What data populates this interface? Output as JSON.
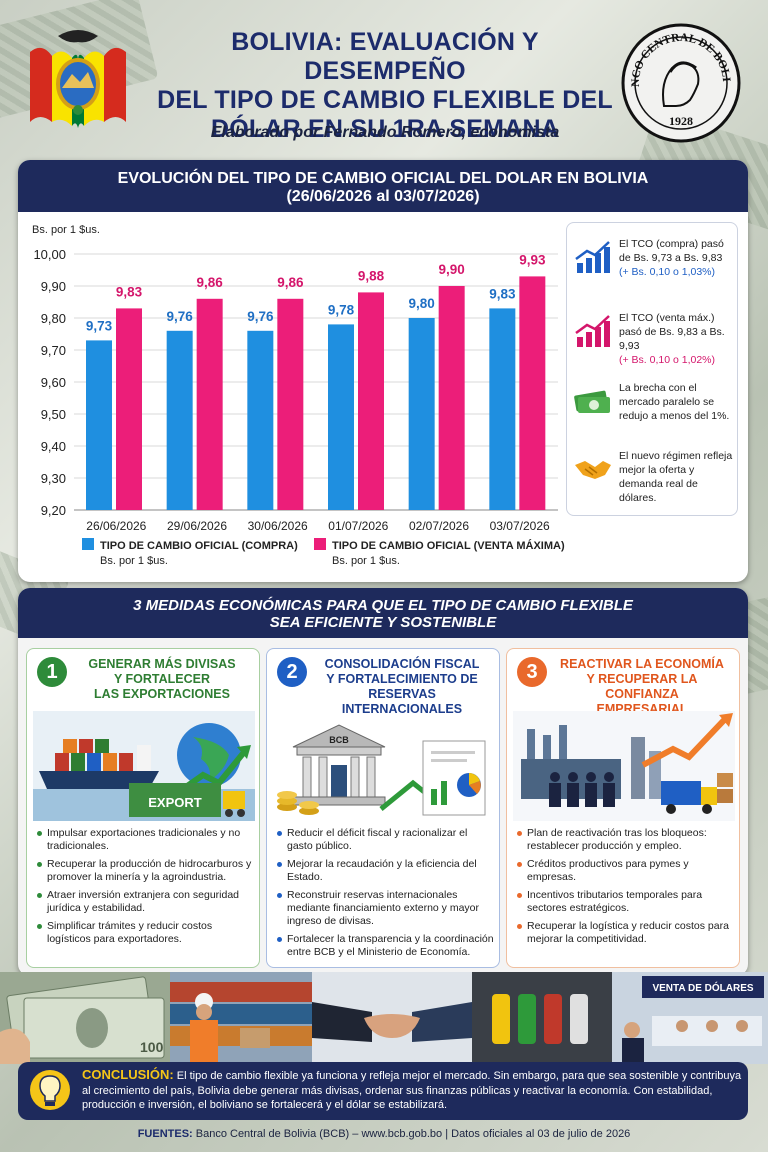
{
  "header": {
    "title_lines": [
      "BOLIVIA: EVALUACIÓN Y DESEMPEÑO",
      "DEL TIPO DE CAMBIO FLEXIBLE DEL",
      "DÓLAR EN SU 1RA SEMANA"
    ],
    "subtitle": "Elaborado por Fernando Romero, economista",
    "seal_text": "BANCO CENTRAL DE BOLIVIA",
    "seal_year": "1928"
  },
  "chart_section": {
    "title": "EVOLUCIÓN DEL TIPO DE CAMBIO OFICIAL DEL DOLAR EN BOLIVIA",
    "subtitle": "(26/06/2026 al 03/07/2026)",
    "unit": "Bs. por 1 $us."
  },
  "chart_data": {
    "type": "bar",
    "categories": [
      "26/06/2026",
      "29/06/2026",
      "30/06/2026",
      "01/07/2026",
      "02/07/2026",
      "03/07/2026"
    ],
    "series": [
      {
        "name": "TIPO DE CAMBIO OFICIAL (COMPRA)",
        "values": [
          9.73,
          9.76,
          9.76,
          9.78,
          9.8,
          9.83
        ],
        "labels": [
          "9,73",
          "9,76",
          "9,76",
          "9,78",
          "9,80",
          "9,83"
        ],
        "color": "#1f8fe0"
      },
      {
        "name": "TIPO DE CAMBIO OFICIAL (VENTA MÁXIMA)",
        "values": [
          9.83,
          9.86,
          9.86,
          9.88,
          9.9,
          9.93
        ],
        "labels": [
          "9,83",
          "9,86",
          "9,86",
          "9,88",
          "9,90",
          "9,93"
        ],
        "color": "#ec1e79"
      }
    ],
    "ylim": [
      9.2,
      10.0
    ],
    "yticks": [
      9.2,
      9.3,
      9.4,
      9.5,
      9.6,
      9.7,
      9.8,
      9.9,
      10.0
    ],
    "ytick_labels": [
      "9,20",
      "9,30",
      "9,40",
      "9,50",
      "9,60",
      "9,70",
      "9,80",
      "9,90",
      "10,00"
    ],
    "ylabel": "Bs. por 1 $us.",
    "grid": true,
    "legend_position": "bottom"
  },
  "legend": {
    "compra": {
      "label": "TIPO DE CAMBIO OFICIAL (COMPRA)",
      "unit": "Bs. por 1 $us."
    },
    "venta": {
      "label": "TIPO DE CAMBIO OFICIAL (VENTA MÁXIMA)",
      "unit": "Bs. por 1 $us."
    }
  },
  "highlights": [
    {
      "text": "El TCO (compra) pasó de Bs. 9,73 a Bs. 9,83",
      "emph": "(+ Bs. 0,10 o 1,03%)",
      "icon": "chart-up-blue-icon"
    },
    {
      "text": "El TCO (venta máx.) pasó de Bs. 9,83 a Bs. 9,93",
      "emph": "(+ Bs. 0,10 o 1,02%)",
      "icon": "chart-up-pink-icon"
    },
    {
      "text": "La brecha con el mercado paralelo se redujo a menos del 1%.",
      "emph": "",
      "icon": "money-icon"
    },
    {
      "text": "El nuevo régimen refleja mejor la oferta y demanda real de dólares.",
      "emph": "",
      "icon": "handshake-icon"
    }
  ],
  "measures": {
    "title_lines": [
      "3 MEDIDAS ECONÓMICAS PARA QUE EL TIPO DE CAMBIO FLEXIBLE",
      "SEA EFICIENTE Y SOSTENIBLE"
    ],
    "items": [
      {
        "num": "1",
        "title_lines": [
          "GENERAR MÁS DIVISAS",
          "Y FORTALECER",
          "LAS EXPORTACIONES"
        ],
        "tag": "EXPORT",
        "bullets": [
          "Impulsar exportaciones tradicionales y no tradicionales.",
          "Recuperar la producción de hidrocarburos y promover la minería y la agroindustria.",
          "Atraer inversión extranjera con seguridad jurídica y estabilidad.",
          "Simplificar trámites y reducir costos logísticos para exportadores."
        ]
      },
      {
        "num": "2",
        "title_lines": [
          "CONSOLIDACIÓN FISCAL",
          "Y FORTALECIMIENTO DE",
          "RESERVAS INTERNACIONALES"
        ],
        "tag": "BCB",
        "bullets": [
          "Reducir el déficit fiscal y racionalizar el gasto público.",
          "Mejorar la recaudación y la eficiencia del Estado.",
          "Reconstruir reservas internacionales mediante financiamiento externo y mayor ingreso de divisas.",
          "Fortalecer la transparencia y la coordinación entre BCB y el Ministerio de Economía."
        ]
      },
      {
        "num": "3",
        "title_lines": [
          "REACTIVAR LA ECONOMÍA",
          "Y RECUPERAR LA CONFIANZA",
          "EMPRESARIAL"
        ],
        "tag": "",
        "bullets": [
          "Plan de reactivación tras los bloqueos: restablecer producción y empleo.",
          "Créditos productivos para pymes y empresas.",
          "Incentivos tributarios temporales para sectores estratégicos.",
          "Recuperar la logística y reducir costos para mejorar la competitividad."
        ]
      }
    ]
  },
  "photos": {
    "sign": "VENTA DE DÓLARES",
    "bill": "100"
  },
  "conclusion": {
    "label": "CONCLUSIÓN:",
    "text": "El tipo de cambio flexible ya funciona y refleja mejor el mercado. Sin embargo, para que sea sostenible y contribuya al crecimiento del país, Bolivia debe generar más divisas, ordenar sus finanzas públicas y reactivar la economía. Con estabilidad, producción e inversión, el boliviano se fortalecerá y el dólar se estabilizará."
  },
  "footer": {
    "label": "FUENTES:",
    "text": "Banco Central de Bolivia (BCB) – www.bcb.gob.bo  |  Datos oficiales al 03 de julio de 2026"
  }
}
